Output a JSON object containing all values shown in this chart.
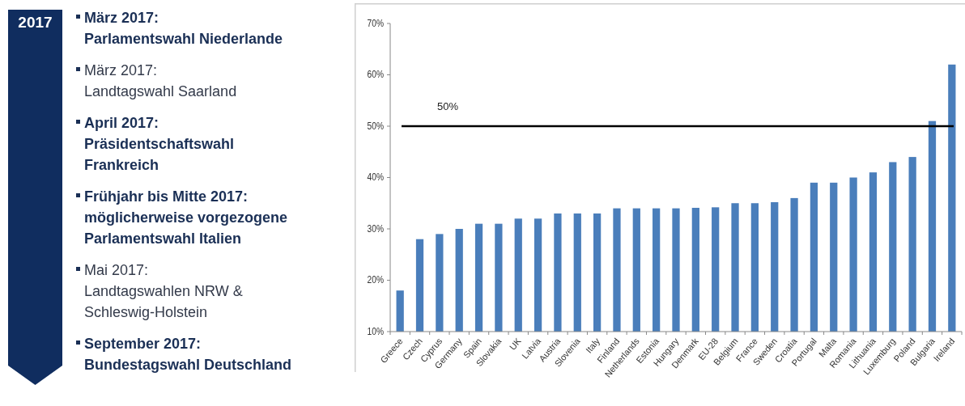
{
  "chart_data": [
    {
      "type": "other",
      "title": "2017",
      "annotations": [
        "März 2017:\nParlamentswahl Niederlande",
        "März 2017:\nLandtagswahl Saarland",
        "April 2017:\nPräsidentschaftswahl\nFrankreich",
        "Frühjahr bis Mitte 2017:\nmöglicherweise vorgezogene\nParlamentswahl Italien",
        "Mai 2017:\nLandtagswahlen NRW &\nSchleswig-Holstein",
        "September 2017:\nBundestagswahl Deutschland"
      ]
    },
    {
      "type": "bar",
      "categories": [
        "Greece",
        "Czech",
        "Cyprus",
        "Germany",
        "Spain",
        "Slovakia",
        "UK",
        "Latvia",
        "Austria",
        "Slovenia",
        "Italy",
        "Finland",
        "Netherlands",
        "Estonia",
        "Hungary",
        "Denmark",
        "EU-28",
        "Belgium",
        "France",
        "Sweden",
        "Croatia",
        "Portugal",
        "Malta",
        "Romania",
        "Lithuania",
        "Luxemburg",
        "Poland",
        "Bulgaria",
        "Ireland"
      ],
      "values": [
        18,
        28,
        29,
        30,
        31,
        31,
        32,
        32,
        33,
        33,
        33,
        34,
        34,
        34,
        34,
        34.1,
        34.2,
        35,
        35,
        35.2,
        36,
        39,
        39,
        40,
        41,
        43,
        44,
        51,
        62
      ],
      "color": "#4a7ebb",
      "ylim": [
        10,
        70
      ],
      "yticks": [
        {
          "value": 10,
          "label": "10%"
        },
        {
          "value": 20,
          "label": "20%"
        },
        {
          "value": 30,
          "label": "30%"
        },
        {
          "value": 40,
          "label": "40%"
        },
        {
          "value": 50,
          "label": "50%"
        },
        {
          "value": 60,
          "label": "60%"
        },
        {
          "value": 70,
          "label": "70%"
        }
      ],
      "ref_lines": [
        {
          "axis": "y",
          "value": 50,
          "label": "50%",
          "color": "#000000"
        }
      ],
      "grid": false
    }
  ]
}
